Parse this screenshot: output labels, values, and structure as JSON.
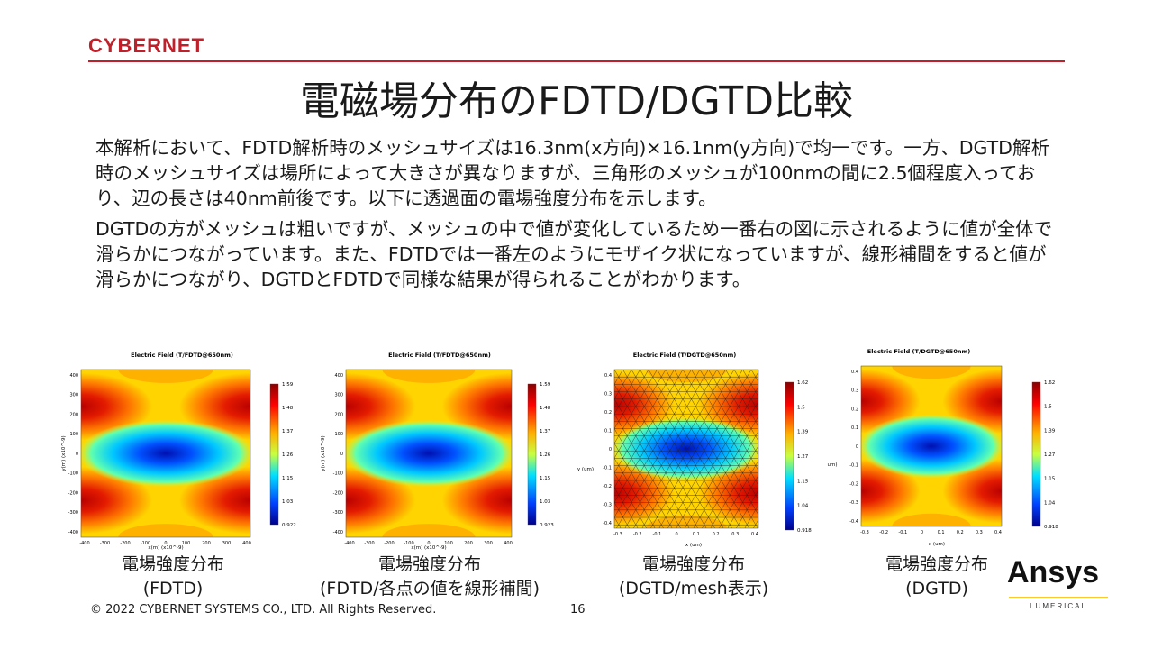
{
  "header": {
    "logo": "CYBERNET",
    "title": "電磁場分布のFDTD/DGTD比較"
  },
  "body": {
    "paragraph1": "本解析において、FDTD解析時のメッシュサイズは16.3nm(x方向)×16.1nm(y方向)で均一です。一方、DGTD解析時のメッシュサイズは場所によって大きさが異なりますが、三角形のメッシュが100nmの間に2.5個程度入っており、辺の長さは40nm前後です。以下に透過面の電場強度分布を示します。",
    "paragraph2": "DGTDの方がメッシュは粗いですが、メッシュの中で値が変化しているため一番右の図に示されるように値が全体で滑らかにつながっています。また、FDTDでは一番左のようにモザイク状になっていますが、線形補間をすると値が滑らかにつながり、DGTDとFDTDで同様な結果が得られることがわかります。"
  },
  "panels": [
    {
      "plot_title": "Electric Field (T/FDTD@650nm)",
      "ylabel": "y(m) (x10^-9)",
      "xlabel": "x(m) (x10^-9)",
      "xticks": [
        "-400",
        "-300",
        "-200",
        "-100",
        "0",
        "100",
        "200",
        "300",
        "400"
      ],
      "yticks": [
        "400",
        "300",
        "200",
        "100",
        "0",
        "-100",
        "-200",
        "-300",
        "-400"
      ],
      "colorbar": [
        "1.59",
        "1.48",
        "1.37",
        "1.26",
        "1.15",
        "1.03",
        "0.922"
      ],
      "caption_line1": "電場強度分布",
      "caption_line2": "(FDTD)"
    },
    {
      "plot_title": "Electric Field (T/FDTD@650nm)",
      "ylabel": "y(m) (x10^-9)",
      "xlabel": "x(m) (x10^-9)",
      "xticks": [
        "-400",
        "-300",
        "-200",
        "-100",
        "0",
        "100",
        "200",
        "300",
        "400"
      ],
      "yticks": [
        "400",
        "300",
        "200",
        "100",
        "0",
        "-100",
        "-200",
        "-300",
        "-400"
      ],
      "colorbar": [
        "1.59",
        "1.48",
        "1.37",
        "1.26",
        "1.15",
        "1.03",
        "0.923"
      ],
      "caption_line1": "電場強度分布",
      "caption_line2": "(FDTD/各点の値を線形補間)"
    },
    {
      "plot_title": "Electric Field (T/DGTD@650nm)",
      "ylabel": "y (um)",
      "xlabel": "x (um)",
      "xticks": [
        "-0.3",
        "-0.2",
        "-0.1",
        "0",
        "0.1",
        "0.2",
        "0.3",
        "0.4"
      ],
      "yticks": [
        "0.4",
        "0.3",
        "0.2",
        "0.1",
        "0",
        "-0.1",
        "-0.2",
        "-0.3",
        "-0.4"
      ],
      "colorbar": [
        "1.62",
        "1.5",
        "1.39",
        "1.27",
        "1.15",
        "1.04",
        "0.918"
      ],
      "caption_line1": "電場強度分布",
      "caption_line2": "(DGTD/mesh表示)"
    },
    {
      "plot_title": "Electric Field (T/DGTD@650nm)",
      "ylabel": "um)",
      "xlabel": "x (um)",
      "xticks": [
        "-0.3",
        "-0.2",
        "-0.1",
        "0",
        "0.1",
        "0.2",
        "0.3",
        "0.4"
      ],
      "yticks": [
        "0.4",
        "0.3",
        "0.2",
        "0.1",
        "0",
        "-0.1",
        "-0.2",
        "-0.3",
        "-0.4"
      ],
      "colorbar": [
        "1.62",
        "1.5",
        "1.39",
        "1.27",
        "1.15",
        "1.04",
        "0.918"
      ],
      "caption_line1": "電場強度分布",
      "caption_line2": "(DGTD)"
    }
  ],
  "footer": {
    "copyright": "© 2022 CYBERNET SYSTEMS CO., LTD. All Rights Reserved.",
    "page_number": "16"
  },
  "brand": {
    "name": "Ansys",
    "sub": "LUMERICAL"
  },
  "colors": {
    "accent": "#c0202a",
    "ansys_yellow": "#ffc72c"
  }
}
